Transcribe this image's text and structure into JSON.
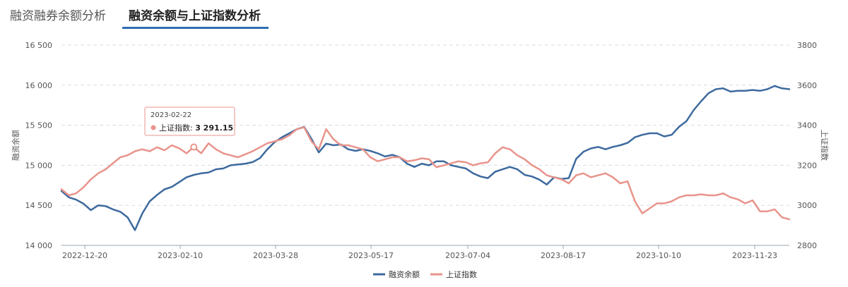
{
  "tabs": [
    {
      "label": "融资融券余额分析",
      "active": false
    },
    {
      "label": "融资余额与上证指数分析",
      "active": true
    }
  ],
  "chart_data": {
    "type": "line",
    "x_ticks": [
      "2022-12-20",
      "2023-02-10",
      "2023-03-28",
      "2023-05-17",
      "2023-07-04",
      "2023-08-17",
      "2023-10-10",
      "2023-11-23"
    ],
    "y_left": {
      "label": "融资余额",
      "min": 14000,
      "max": 16500,
      "ticks": [
        14000,
        14500,
        15000,
        15500,
        16000,
        16500
      ],
      "tick_labels": [
        "14 000",
        "14 500",
        "15 000",
        "15 500",
        "16 000",
        "16 500"
      ]
    },
    "y_right": {
      "label": "上证指数",
      "min": 2800,
      "max": 3800,
      "ticks": [
        2800,
        3000,
        3200,
        3400,
        3600,
        3800
      ],
      "tick_labels": [
        "2800",
        "3000",
        "3200",
        "3400",
        "3600",
        "3800"
      ]
    },
    "series": [
      {
        "name": "融资余额",
        "color": "#3d6a9e",
        "axis": "left",
        "values": [
          14680,
          14600,
          14570,
          14520,
          14440,
          14500,
          14490,
          14450,
          14420,
          14350,
          14190,
          14400,
          14550,
          14630,
          14700,
          14730,
          14790,
          14850,
          14880,
          14900,
          14910,
          14950,
          14960,
          15000,
          15010,
          15020,
          15040,
          15090,
          15200,
          15290,
          15350,
          15400,
          15450,
          15480,
          15330,
          15160,
          15270,
          15250,
          15260,
          15200,
          15180,
          15200,
          15180,
          15150,
          15110,
          15130,
          15100,
          15020,
          14980,
          15020,
          15000,
          15050,
          15050,
          15000,
          14980,
          14960,
          14900,
          14860,
          14840,
          14920,
          14950,
          14980,
          14950,
          14880,
          14860,
          14820,
          14760,
          14850,
          14830,
          14840,
          15080,
          15170,
          15210,
          15230,
          15200,
          15230,
          15250,
          15280,
          15350,
          15380,
          15400,
          15400,
          15360,
          15380,
          15480,
          15550,
          15690,
          15800,
          15900,
          15950,
          15960,
          15920,
          15930,
          15930,
          15940,
          15930,
          15950,
          15990,
          15960,
          15950
        ]
      },
      {
        "name": "上证指数",
        "color": "#e8948c",
        "axis": "right",
        "values": [
          3080,
          3050,
          3060,
          3090,
          3130,
          3160,
          3180,
          3210,
          3240,
          3250,
          3270,
          3280,
          3270,
          3290,
          3275,
          3300,
          3285,
          3260,
          3291.15,
          3260,
          3310,
          3280,
          3260,
          3250,
          3240,
          3255,
          3270,
          3290,
          3310,
          3320,
          3330,
          3350,
          3380,
          3390,
          3320,
          3280,
          3380,
          3330,
          3300,
          3300,
          3290,
          3280,
          3240,
          3220,
          3230,
          3240,
          3240,
          3220,
          3225,
          3235,
          3230,
          3190,
          3200,
          3210,
          3220,
          3215,
          3200,
          3210,
          3215,
          3260,
          3290,
          3280,
          3250,
          3230,
          3200,
          3180,
          3150,
          3140,
          3130,
          3110,
          3150,
          3160,
          3140,
          3150,
          3160,
          3140,
          3110,
          3120,
          3020,
          2960,
          2985,
          3010,
          3010,
          3020,
          3040,
          3050,
          3050,
          3055,
          3050,
          3050,
          3060,
          3040,
          3030,
          3010,
          3025,
          2970,
          2970,
          2980,
          2940,
          2930
        ]
      }
    ],
    "tooltip": {
      "date": "2023-02-22",
      "series": "上证指数",
      "value": "3 291.15"
    },
    "legend_position": "bottom-center",
    "grid": true
  }
}
